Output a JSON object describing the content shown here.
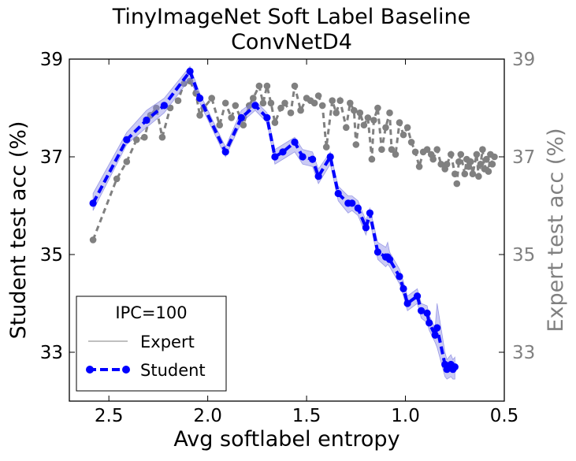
{
  "chart_data": {
    "type": "line",
    "title": "TinyImageNet Soft Label Baseline",
    "subtitle": "ConvNetD4",
    "xlabel": "Avg softlabel entropy",
    "ylabel": "Student test acc (%)",
    "y2label": "Expert test acc (%)",
    "xlim": [
      2.7,
      0.5
    ],
    "ylim": [
      32.0,
      39.0
    ],
    "y2lim": [
      32.0,
      39.0
    ],
    "xticks": [
      "2.5",
      "2.0",
      "1.5",
      "1.0",
      "0.5"
    ],
    "yticks": [
      "33",
      "35",
      "37",
      "39"
    ],
    "y2ticks": [
      "33",
      "35",
      "37",
      "39"
    ],
    "legend": {
      "title": "IPC=100",
      "position": "lower-left",
      "entries": [
        "Expert",
        "Student"
      ]
    },
    "colors": {
      "student": "#0000ff",
      "student_band": "#8c8ce6",
      "expert": "#808080",
      "expert_axis": "#808080"
    },
    "series": [
      {
        "name": "Student",
        "x": [
          2.58,
          2.41,
          2.31,
          2.22,
          2.09,
          2.04,
          1.91,
          1.83,
          1.76,
          1.7,
          1.66,
          1.62,
          1.56,
          1.52,
          1.47,
          1.44,
          1.38,
          1.34,
          1.29,
          1.27,
          1.24,
          1.2,
          1.18,
          1.14,
          1.1,
          1.09,
          1.08,
          1.03,
          1.01,
          0.99,
          0.94,
          0.92,
          0.89,
          0.88,
          0.85,
          0.84,
          0.8,
          0.79,
          0.77,
          0.76,
          0.75
        ],
        "y": [
          36.05,
          37.35,
          37.75,
          38.05,
          38.75,
          38.2,
          37.1,
          37.8,
          38.05,
          37.8,
          37.0,
          37.1,
          37.3,
          37.0,
          36.95,
          36.6,
          37.0,
          36.25,
          36.05,
          36.05,
          35.95,
          35.55,
          35.85,
          35.05,
          34.95,
          34.95,
          34.9,
          34.55,
          34.3,
          34.0,
          34.15,
          33.85,
          33.8,
          33.6,
          33.35,
          33.5,
          32.75,
          32.65,
          32.75,
          32.65,
          32.7
        ],
        "band_low": [
          35.9,
          37.25,
          37.6,
          37.9,
          38.6,
          38.1,
          37.0,
          37.7,
          37.95,
          37.7,
          36.85,
          36.95,
          37.1,
          36.85,
          36.8,
          36.45,
          36.85,
          36.1,
          35.85,
          35.9,
          35.8,
          35.4,
          35.7,
          34.9,
          34.75,
          34.8,
          34.75,
          34.4,
          34.15,
          33.85,
          34.0,
          33.7,
          33.6,
          33.45,
          33.2,
          33.1,
          32.5,
          32.45,
          32.5,
          32.45,
          32.45
        ],
        "band_high": [
          36.25,
          37.5,
          37.95,
          38.2,
          38.85,
          38.3,
          37.2,
          37.95,
          38.15,
          37.9,
          37.15,
          37.25,
          37.4,
          37.15,
          37.1,
          36.75,
          37.1,
          36.4,
          36.2,
          36.2,
          36.1,
          35.7,
          35.95,
          35.25,
          35.15,
          35.25,
          35.05,
          34.7,
          34.45,
          34.15,
          34.3,
          34.0,
          33.95,
          33.75,
          33.5,
          34.0,
          33.0,
          32.85,
          32.95,
          32.85,
          32.9
        ]
      },
      {
        "name": "Expert",
        "x": [
          2.58,
          2.46,
          2.41,
          2.36,
          2.32,
          2.29,
          2.26,
          2.23,
          2.19,
          2.15,
          2.12,
          2.09,
          2.06,
          2.04,
          2.02,
          1.98,
          1.94,
          1.91,
          1.88,
          1.86,
          1.82,
          1.79,
          1.77,
          1.74,
          1.72,
          1.7,
          1.68,
          1.66,
          1.63,
          1.61,
          1.58,
          1.56,
          1.53,
          1.5,
          1.48,
          1.46,
          1.44,
          1.42,
          1.4,
          1.37,
          1.35,
          1.33,
          1.3,
          1.28,
          1.26,
          1.25,
          1.23,
          1.21,
          1.19,
          1.17,
          1.16,
          1.14,
          1.12,
          1.1,
          1.08,
          1.07,
          1.05,
          1.03,
          1.01,
          0.99,
          0.97,
          0.95,
          0.93,
          0.91,
          0.89,
          0.87,
          0.86,
          0.84,
          0.82,
          0.8,
          0.79,
          0.77,
          0.75,
          0.74,
          0.73,
          0.72,
          0.7,
          0.69,
          0.68,
          0.67,
          0.66,
          0.64,
          0.63,
          0.62,
          0.61,
          0.6,
          0.59,
          0.58,
          0.57,
          0.56,
          0.55
        ],
        "y": [
          35.3,
          36.55,
          36.9,
          37.35,
          37.4,
          37.85,
          38.0,
          37.4,
          38.0,
          38.15,
          38.5,
          38.55,
          38.3,
          37.85,
          38.0,
          38.2,
          37.65,
          38.1,
          37.8,
          38.05,
          37.65,
          38.05,
          38.2,
          38.45,
          38.1,
          38.45,
          38.1,
          37.7,
          38.0,
          38.1,
          37.9,
          38.45,
          37.95,
          38.2,
          38.15,
          38.1,
          38.25,
          38.05,
          37.2,
          38.15,
          37.9,
          38.15,
          37.6,
          38.1,
          37.95,
          37.25,
          37.9,
          37.65,
          37.8,
          36.95,
          37.75,
          38.0,
          37.15,
          37.6,
          37.9,
          37.15,
          37.05,
          37.7,
          37.45,
          37.6,
          37.3,
          37.1,
          36.8,
          37.1,
          37.15,
          37.05,
          36.95,
          37.15,
          36.85,
          36.75,
          36.85,
          37.05,
          36.65,
          36.45,
          36.9,
          37.05,
          36.65,
          36.95,
          36.8,
          36.9,
          36.65,
          37.05,
          36.6,
          36.85,
          37.15,
          36.75,
          36.95,
          36.7,
          37.05,
          36.85,
          37.0
        ]
      }
    ]
  }
}
